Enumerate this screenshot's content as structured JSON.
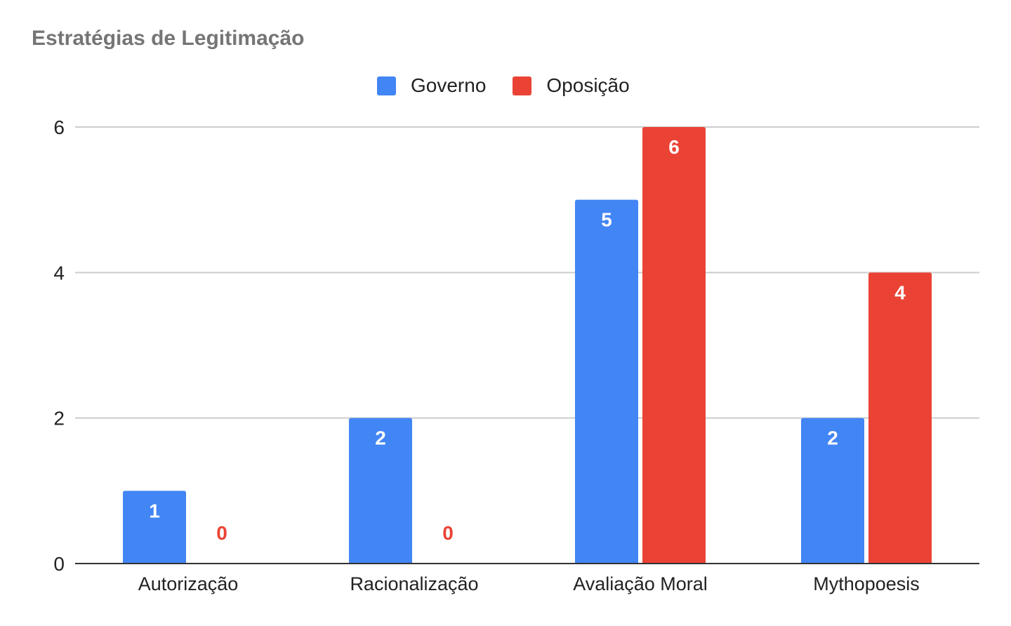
{
  "chart_data": {
    "type": "bar",
    "title": "Estratégias de Legitimação",
    "xlabel": "",
    "ylabel": "",
    "categories": [
      "Autorização",
      "Racionalização",
      "Avaliação Moral",
      "Mythopoesis"
    ],
    "series": [
      {
        "name": "Governo",
        "color": "#4285F4",
        "values": [
          1,
          2,
          5,
          2
        ]
      },
      {
        "name": "Oposição",
        "color": "#EA4335",
        "values": [
          0,
          0,
          6,
          4
        ]
      }
    ],
    "ylim": [
      0,
      6
    ],
    "yticks": [
      0,
      2,
      4,
      6
    ],
    "grid": true,
    "legend_position": "top-center",
    "data_labels": true
  }
}
